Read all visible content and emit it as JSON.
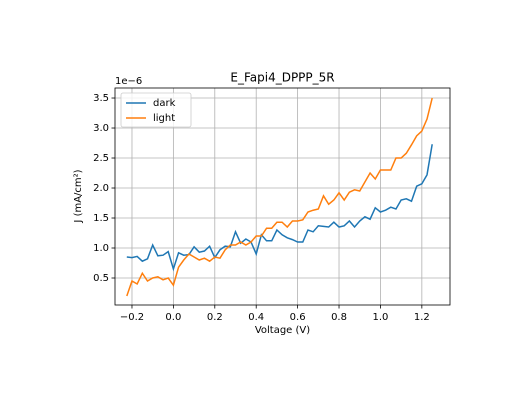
{
  "chart_data": {
    "type": "line",
    "title": "E_Fapi4_DPPP_5R",
    "xlabel": "Voltage (V)",
    "ylabel": "J (mA/cm²)",
    "y_offset_label": "1e−6",
    "x": [
      -0.225,
      -0.2,
      -0.175,
      -0.15,
      -0.125,
      -0.1,
      -0.075,
      -0.05,
      -0.025,
      0,
      0.025,
      0.05,
      0.075,
      0.1,
      0.125,
      0.15,
      0.175,
      0.2,
      0.225,
      0.25,
      0.275,
      0.3,
      0.325,
      0.35,
      0.375,
      0.4,
      0.425,
      0.45,
      0.475,
      0.5,
      0.525,
      0.55,
      0.575,
      0.6,
      0.625,
      0.65,
      0.675,
      0.7,
      0.725,
      0.75,
      0.775,
      0.8,
      0.825,
      0.85,
      0.875,
      0.9,
      0.925,
      0.95,
      0.975,
      1,
      1.025,
      1.05,
      1.075,
      1.1,
      1.125,
      1.15,
      1.175,
      1.2,
      1.225,
      1.25
    ],
    "series": [
      {
        "name": "dark",
        "color": "#1f77b4",
        "values": [
          0.85,
          0.84,
          0.86,
          0.78,
          0.82,
          1.05,
          0.87,
          0.88,
          0.94,
          0.65,
          0.92,
          0.88,
          0.89,
          1.02,
          0.93,
          0.95,
          1.03,
          0.84,
          0.97,
          1.03,
          1.02,
          1.27,
          1.08,
          1.15,
          1.1,
          0.9,
          1.22,
          1.12,
          1.12,
          1.3,
          1.22,
          1.17,
          1.14,
          1.1,
          1.1,
          1.3,
          1.27,
          1.37,
          1.36,
          1.35,
          1.43,
          1.35,
          1.37,
          1.45,
          1.35,
          1.45,
          1.52,
          1.48,
          1.67,
          1.6,
          1.63,
          1.68,
          1.65,
          1.8,
          1.82,
          1.78,
          2.03,
          2.07,
          2.22,
          2.73
        ]
      },
      {
        "name": "light",
        "color": "#ff7f0e",
        "values": [
          0.2,
          0.45,
          0.4,
          0.58,
          0.45,
          0.5,
          0.52,
          0.47,
          0.5,
          0.38,
          0.68,
          0.8,
          0.9,
          0.85,
          0.8,
          0.83,
          0.78,
          0.85,
          0.83,
          0.97,
          1.05,
          1.05,
          1.1,
          1.05,
          1.1,
          1.2,
          1.2,
          1.33,
          1.33,
          1.43,
          1.43,
          1.35,
          1.45,
          1.45,
          1.47,
          1.6,
          1.63,
          1.65,
          1.87,
          1.73,
          1.8,
          1.92,
          1.8,
          1.93,
          1.97,
          1.95,
          2.1,
          2.25,
          2.15,
          2.3,
          2.3,
          2.3,
          2.5,
          2.5,
          2.58,
          2.72,
          2.87,
          2.95,
          3.15,
          3.5
        ]
      }
    ],
    "xlim": [
      -0.282,
      1.336
    ],
    "ylim": [
      0.05,
      3.667
    ],
    "xticks": [
      {
        "value": -0.2,
        "label": "−0.2"
      },
      {
        "value": 0,
        "label": "0.0"
      },
      0.2,
      0.4,
      0.6,
      0.8,
      {
        "value": 1,
        "label": "1.0"
      },
      1.2
    ],
    "yticks": [
      0.5,
      {
        "value": 1,
        "label": "1.0"
      },
      1.5,
      {
        "value": 2,
        "label": "2.0"
      },
      2.5,
      {
        "value": 3,
        "label": "3.0"
      },
      3.5
    ],
    "grid": true,
    "legend": "upper left"
  }
}
